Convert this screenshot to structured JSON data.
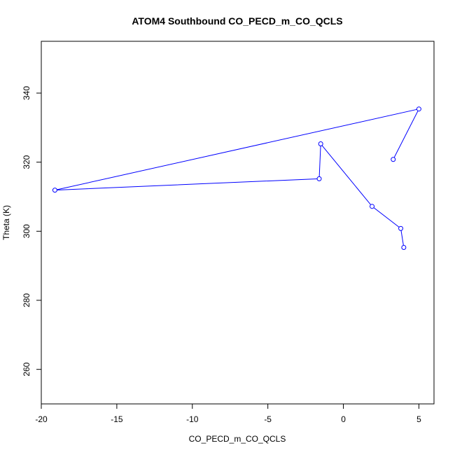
{
  "chart_data": {
    "type": "line",
    "title": "ATOM4 Southbound CO_PECD_m_CO_QCLS",
    "xlabel": "CO_PECD_m_CO_QCLS",
    "ylabel": "Theta (K)",
    "xlim": [
      -20,
      6
    ],
    "ylim": [
      250,
      355
    ],
    "x_ticks": [
      -20,
      -15,
      -10,
      -5,
      0,
      5
    ],
    "y_ticks": [
      260,
      280,
      300,
      320,
      340
    ],
    "x_tick_labels": [
      "-20",
      "-15",
      "-10",
      "-5",
      "0",
      "5"
    ],
    "y_tick_labels": [
      "260",
      "280",
      "300",
      "320",
      "340"
    ],
    "grid": false,
    "line_color": "#0000ff",
    "series": [
      {
        "x": [
          4.0,
          3.8,
          1.9,
          -1.5,
          -1.6,
          -19.1,
          5.0,
          3.3
        ],
        "y": [
          295.3,
          300.8,
          307.2,
          325.3,
          315.2,
          311.9,
          335.4,
          320.8
        ]
      }
    ]
  }
}
